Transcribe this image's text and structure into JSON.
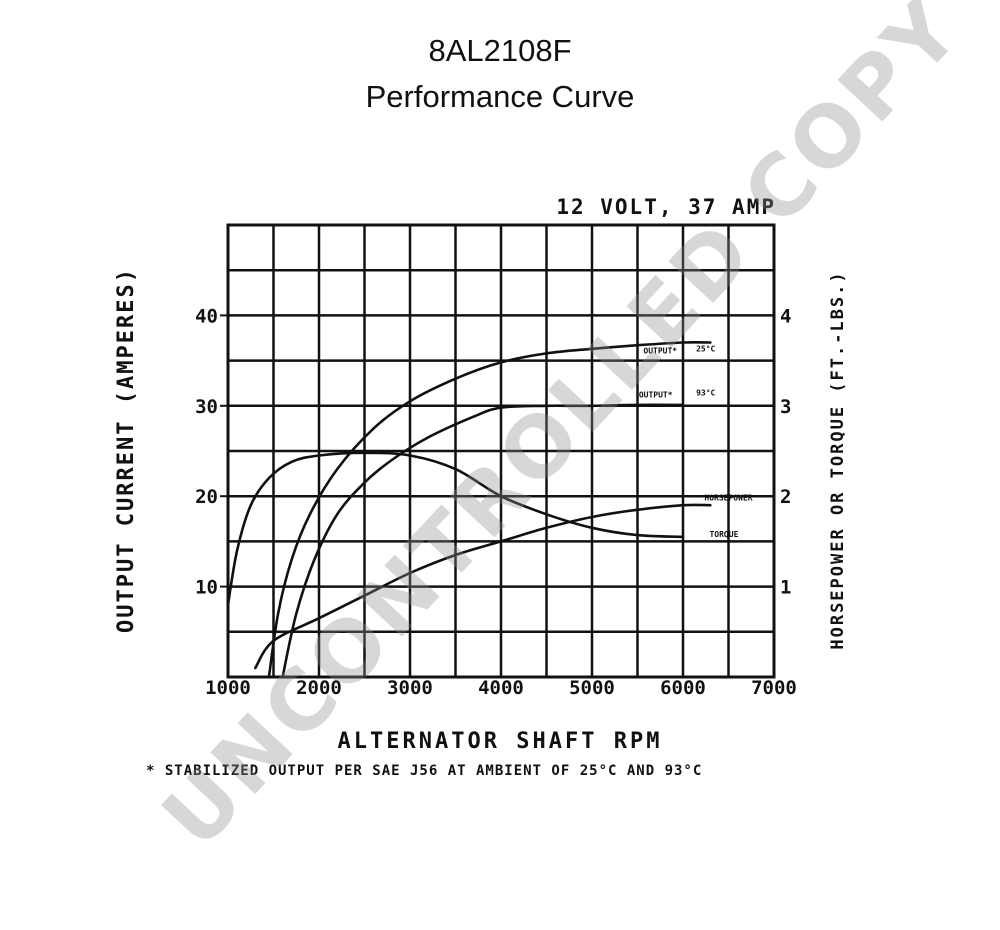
{
  "title": "8AL2108F",
  "subtitle": "Performance Curve",
  "watermark": "UNCONTROLLED COPY",
  "chart_data": {
    "type": "line",
    "rating_label": "12 VOLT, 37 AMP",
    "xlabel": "ALTERNATOR SHAFT RPM",
    "ylabel_left": "OUTPUT CURRENT (AMPERES)",
    "ylabel_right": "HORSEPOWER OR TORQUE (FT.-LBS.)",
    "footnote": "* STABILIZED OUTPUT PER SAE J56 AT AMBIENT OF 25°C AND 93°C",
    "xlim": [
      1000,
      7000
    ],
    "ylim_left": [
      0,
      50
    ],
    "ylim_right": [
      0,
      5
    ],
    "grid": true,
    "x_ticks": [
      {
        "value": 1000,
        "label": "1000"
      },
      {
        "value": 2000,
        "label": "2000"
      },
      {
        "value": 3000,
        "label": "3000"
      },
      {
        "value": 4000,
        "label": "4000"
      },
      {
        "value": 5000,
        "label": "5000"
      },
      {
        "value": 6000,
        "label": "6000"
      },
      {
        "value": 7000,
        "label": "7000"
      }
    ],
    "y_ticks_left": [
      {
        "value": 10,
        "label": "10"
      },
      {
        "value": 20,
        "label": "20"
      },
      {
        "value": 30,
        "label": "30"
      },
      {
        "value": 40,
        "label": "40"
      }
    ],
    "y_ticks_right": [
      {
        "value": 1,
        "label": "1"
      },
      {
        "value": 2,
        "label": "2"
      },
      {
        "value": 3,
        "label": "3"
      },
      {
        "value": 4,
        "label": "4"
      }
    ],
    "series": [
      {
        "name": "OUTPUT* 25°C",
        "axis": "left",
        "label_text": "OUTPUT*",
        "end_label": "25°C",
        "label_x": 5750,
        "label_y": 35.8,
        "x": [
          1450,
          1550,
          1700,
          1900,
          2200,
          2600,
          3000,
          3500,
          4000,
          4500,
          5000,
          5500,
          6000,
          6300
        ],
        "y": [
          0,
          7,
          13,
          18,
          23,
          27.5,
          30.5,
          33,
          34.8,
          35.8,
          36.3,
          36.7,
          37,
          37
        ]
      },
      {
        "name": "OUTPUT* 93°C",
        "axis": "left",
        "label_text": "OUTPUT*",
        "end_label": "93°C",
        "label_x": 5700,
        "label_y": 30.9,
        "x": [
          1600,
          1750,
          1950,
          2200,
          2500,
          2800,
          3200,
          3700,
          4000,
          4500,
          5000,
          5500,
          6000
        ],
        "y": [
          0,
          7,
          13,
          18,
          21.5,
          24,
          26.5,
          28.8,
          29.8,
          30,
          30,
          30.1,
          30.1
        ]
      },
      {
        "name": "HORSEPOWER",
        "axis": "right",
        "label_text": "HORSEPOWER",
        "end_label": "",
        "label_x": 6500,
        "label_y": 1.95,
        "x": [
          1300,
          1500,
          2000,
          2500,
          3000,
          3500,
          4000,
          4500,
          5000,
          5500,
          6000,
          6300
        ],
        "y": [
          0.1,
          0.4,
          0.65,
          0.9,
          1.15,
          1.35,
          1.5,
          1.65,
          1.77,
          1.85,
          1.9,
          1.9
        ]
      },
      {
        "name": "TORQUE",
        "axis": "right",
        "label_text": "TORQUE",
        "end_label": "",
        "label_x": 6450,
        "label_y": 1.55,
        "x": [
          1000,
          1100,
          1250,
          1450,
          1700,
          2000,
          2500,
          3000,
          3500,
          4000,
          4500,
          5000,
          5500,
          6000
        ],
        "y": [
          0.8,
          1.4,
          1.9,
          2.2,
          2.38,
          2.45,
          2.48,
          2.45,
          2.3,
          2.0,
          1.8,
          1.65,
          1.57,
          1.55
        ]
      }
    ]
  }
}
